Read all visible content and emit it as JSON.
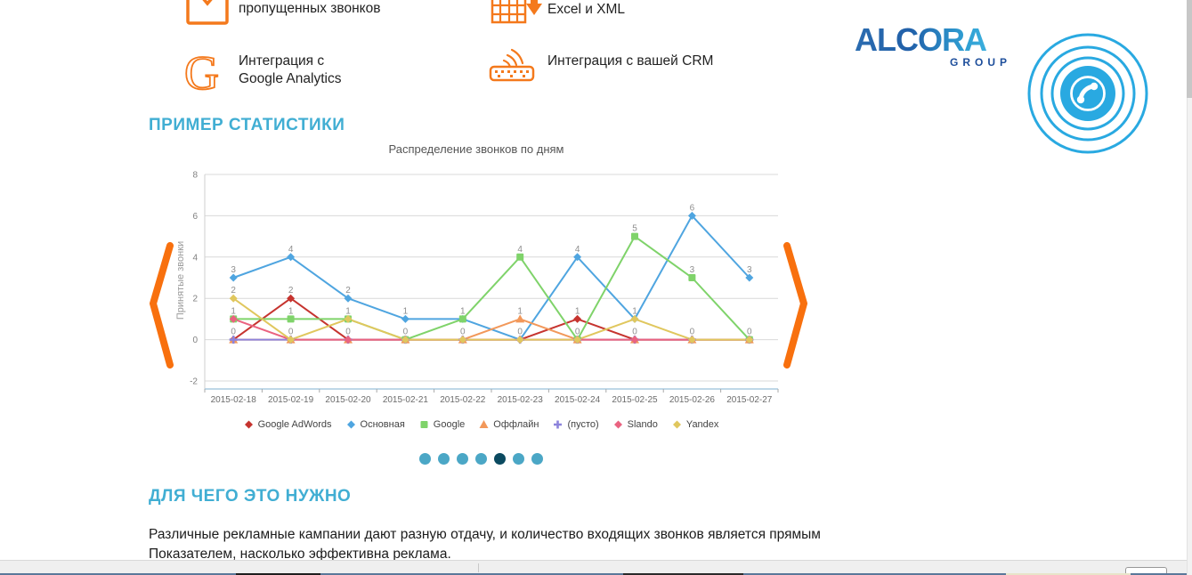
{
  "features": {
    "items": [
      {
        "icon": "envelope-check-icon",
        "lines": [
          "пропущенных звонков"
        ]
      },
      {
        "icon": "excel-export-icon",
        "lines": [
          "Excel и XML"
        ]
      },
      {
        "icon": "google-g-icon",
        "lines": [
          "Интеграция с",
          "Google Analytics"
        ]
      },
      {
        "icon": "crm-integration-icon",
        "lines": [
          "Интеграция с вашей CRM"
        ]
      }
    ]
  },
  "logo": {
    "title": "ALCORA",
    "subtitle": "GROUP"
  },
  "stats_section": {
    "heading": "ПРИМЕР СТАТИСТИКИ"
  },
  "why_section": {
    "heading": "ДЛЯ ЧЕГО ЭТО НУЖНО",
    "paragraph": "Различные рекламные кампании дают разную отдачу, и количество входящих звонков является прямым Показателем, насколько эффективна реклама."
  },
  "carousel": {
    "dots_total": 7,
    "active_dot_index": 4
  },
  "colors": {
    "accent_orange": "#f4791c",
    "arrow_orange": "#f8700e",
    "heading_blue": "#41aed3",
    "logo_dark_blue": "#1d4e9b",
    "phone_icon_blue": "#29a9e1",
    "dot_blue": "#4ba7c6",
    "dot_active": "#0b4a60"
  },
  "chart_data": {
    "type": "line",
    "title": "Распределение звонков по дням",
    "ylabel": "Принятые звонки",
    "xlabel": "",
    "x": [
      "2015-02-18",
      "2015-02-19",
      "2015-02-20",
      "2015-02-21",
      "2015-02-22",
      "2015-02-23",
      "2015-02-24",
      "2015-02-25",
      "2015-02-26",
      "2015-02-27"
    ],
    "ylim": [
      -2,
      8
    ],
    "yticks": [
      -2,
      0,
      2,
      4,
      6,
      8
    ],
    "grid": true,
    "legend_position": "bottom",
    "point_labels": "unique-per-column",
    "series": [
      {
        "name": "Google AdWords",
        "color": "#c6342f",
        "marker": "diamond",
        "values": [
          0,
          2,
          0,
          0,
          0,
          0,
          1,
          0,
          0,
          0
        ]
      },
      {
        "name": "Основная",
        "color": "#4fa5e0",
        "marker": "diamond",
        "values": [
          3,
          4,
          2,
          1,
          1,
          0,
          4,
          1,
          6,
          3
        ]
      },
      {
        "name": "Google",
        "color": "#7fd36a",
        "marker": "square",
        "values": [
          1,
          1,
          1,
          0,
          1,
          4,
          0,
          5,
          3,
          0
        ]
      },
      {
        "name": "Оффлайн",
        "color": "#f2985a",
        "marker": "triangle",
        "values": [
          0,
          0,
          0,
          0,
          0,
          1,
          0,
          0,
          0,
          0
        ]
      },
      {
        "name": "(пусто)",
        "color": "#8d84dc",
        "marker": "cross",
        "values": [
          0,
          0,
          0,
          0,
          0,
          0,
          0,
          0,
          0,
          0
        ]
      },
      {
        "name": "Slando",
        "color": "#ea6380",
        "marker": "diamond",
        "values": [
          1,
          0,
          0,
          0,
          0,
          0,
          0,
          0,
          0,
          0
        ]
      },
      {
        "name": "Yandex",
        "color": "#e0c75e",
        "marker": "diamond",
        "values": [
          2,
          0,
          1,
          0,
          0,
          0,
          0,
          1,
          0,
          0
        ]
      }
    ]
  }
}
